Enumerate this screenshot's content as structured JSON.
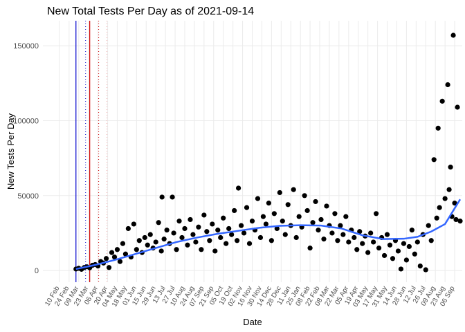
{
  "chart_data": {
    "type": "scatter",
    "title": "New Total Tests Per Day as of 2021-09-14",
    "x_label": "Date",
    "y_label": "New Tests Per Day",
    "xlim": [
      -24,
      585
    ],
    "ylim": [
      -7800,
      166700
    ],
    "yticks": [
      0,
      50000,
      100000,
      150000
    ],
    "xticks": [
      {
        "value": 0,
        "label": "10 Feb"
      },
      {
        "value": 14,
        "label": "24 Feb"
      },
      {
        "value": 28,
        "label": "09 Mar"
      },
      {
        "value": 42,
        "label": "23 Mar"
      },
      {
        "value": 56,
        "label": "06 Apr"
      },
      {
        "value": 70,
        "label": "20 Apr"
      },
      {
        "value": 84,
        "label": "04 May"
      },
      {
        "value": 98,
        "label": "18 May"
      },
      {
        "value": 112,
        "label": "01 Jun"
      },
      {
        "value": 126,
        "label": "15 Jun"
      },
      {
        "value": 140,
        "label": "29 Jun"
      },
      {
        "value": 154,
        "label": "13 Jul"
      },
      {
        "value": 168,
        "label": "27 Jul"
      },
      {
        "value": 182,
        "label": "10 Aug"
      },
      {
        "value": 196,
        "label": "24 Aug"
      },
      {
        "value": 210,
        "label": "07 Sep"
      },
      {
        "value": 224,
        "label": "21 Sep"
      },
      {
        "value": 238,
        "label": "05 Oct"
      },
      {
        "value": 252,
        "label": "19 Oct"
      },
      {
        "value": 266,
        "label": "02 Nov"
      },
      {
        "value": 280,
        "label": "16 Nov"
      },
      {
        "value": 294,
        "label": "30 Nov"
      },
      {
        "value": 308,
        "label": "14 Dec"
      },
      {
        "value": 322,
        "label": "28 Dec"
      },
      {
        "value": 336,
        "label": "11 Jan"
      },
      {
        "value": 350,
        "label": "25 Jan"
      },
      {
        "value": 364,
        "label": "08 Feb"
      },
      {
        "value": 378,
        "label": "22 Feb"
      },
      {
        "value": 392,
        "label": "08 Mar"
      },
      {
        "value": 406,
        "label": "22 Mar"
      },
      {
        "value": 420,
        "label": "05 Apr"
      },
      {
        "value": 434,
        "label": "19 Apr"
      },
      {
        "value": 448,
        "label": "03 May"
      },
      {
        "value": 462,
        "label": "17 May"
      },
      {
        "value": 476,
        "label": "31 May"
      },
      {
        "value": 490,
        "label": "14 Jun"
      },
      {
        "value": 504,
        "label": "28 Jun"
      },
      {
        "value": 518,
        "label": "12 Jul"
      },
      {
        "value": 532,
        "label": "26 Jul"
      },
      {
        "value": 546,
        "label": "09 Aug"
      },
      {
        "value": 560,
        "label": "23 Aug"
      },
      {
        "value": 574,
        "label": "06 Sep"
      }
    ],
    "grid": true,
    "vlines": [
      {
        "x": 24,
        "color": "#0000cc",
        "style": "solid"
      },
      {
        "x": 38,
        "color": "#0000cc",
        "style": "dotted"
      },
      {
        "x": 44,
        "color": "#cc0000",
        "style": "solid"
      },
      {
        "x": 57,
        "color": "#cc0000",
        "style": "dotted"
      },
      {
        "x": 69,
        "color": "#f4a0a0",
        "style": "dotted"
      }
    ],
    "series": [
      {
        "color": "#000000",
        "x": [
          24,
          28,
          32,
          36,
          40,
          44,
          48,
          52,
          56,
          60,
          64,
          68,
          72,
          76,
          80,
          84,
          88,
          92,
          96,
          100,
          104,
          108,
          112,
          116,
          120,
          124,
          128,
          132,
          136,
          140,
          144,
          148,
          149,
          152,
          156,
          160,
          164,
          166,
          170,
          174,
          178,
          182,
          186,
          190,
          194,
          198,
          202,
          206,
          210,
          214,
          218,
          222,
          226,
          230,
          234,
          238,
          242,
          246,
          250,
          254,
          258,
          260,
          264,
          268,
          272,
          276,
          280,
          284,
          288,
          292,
          296,
          300,
          304,
          308,
          312,
          316,
          320,
          324,
          328,
          332,
          336,
          340,
          344,
          348,
          352,
          356,
          360,
          364,
          368,
          372,
          376,
          380,
          384,
          388,
          392,
          396,
          400,
          404,
          408,
          412,
          416,
          420,
          424,
          428,
          432,
          436,
          440,
          444,
          448,
          452,
          456,
          460,
          464,
          468,
          472,
          476,
          480,
          484,
          488,
          492,
          496,
          500,
          504,
          508,
          512,
          516,
          520,
          524,
          528,
          532,
          536,
          540,
          544,
          548,
          550,
          552,
          556,
          560,
          564,
          566,
          568,
          570,
          572,
          574,
          576,
          578,
          582
        ],
        "values": [
          1000,
          1500,
          800,
          2000,
          2500,
          1800,
          3500,
          4000,
          3000,
          6000,
          5000,
          8000,
          2000,
          12000,
          9000,
          14000,
          6000,
          18000,
          11000,
          28000,
          9000,
          31000,
          14000,
          20000,
          12000,
          22000,
          17000,
          24000,
          15000,
          19000,
          32000,
          13000,
          49000,
          21000,
          27000,
          18000,
          49000,
          25000,
          14000,
          33000,
          22000,
          28000,
          17000,
          34000,
          24000,
          19000,
          29000,
          14000,
          37000,
          26000,
          20000,
          31000,
          13000,
          27000,
          22000,
          35000,
          18000,
          28000,
          24000,
          40000,
          20000,
          55000,
          30000,
          25000,
          42000,
          18000,
          33000,
          27000,
          48000,
          22000,
          36000,
          31000,
          45000,
          20000,
          38000,
          28000,
          52000,
          33000,
          24000,
          44000,
          30000,
          54000,
          22000,
          36000,
          29000,
          50000,
          40000,
          15000,
          32000,
          46000,
          27000,
          34000,
          21000,
          43000,
          30000,
          25000,
          38000,
          20000,
          30000,
          24000,
          36000,
          19000,
          27000,
          22000,
          14000,
          26000,
          18000,
          23000,
          12000,
          25000,
          19000,
          38000,
          15000,
          22000,
          10000,
          24000,
          17000,
          8000,
          20000,
          13000,
          1000,
          18000,
          7000,
          16000,
          27000,
          11000,
          19000,
          3000,
          24000,
          500,
          30000,
          20000,
          74000,
          35000,
          95000,
          42000,
          113000,
          48000,
          124000,
          54000,
          69000,
          36000,
          157000,
          45000,
          34000,
          109000,
          33000
        ]
      },
      {
        "color": "#3366ff",
        "line": true,
        "x": [
          24,
          50,
          80,
          110,
          140,
          170,
          200,
          230,
          260,
          290,
          320,
          350,
          380,
          410,
          440,
          470,
          500,
          520,
          540,
          560,
          582
        ],
        "values": [
          1000,
          3500,
          7000,
          11000,
          15000,
          19000,
          22000,
          24500,
          26500,
          28500,
          29800,
          30200,
          30000,
          28000,
          23500,
          21000,
          21200,
          22500,
          26000,
          31000,
          47500
        ]
      }
    ]
  }
}
